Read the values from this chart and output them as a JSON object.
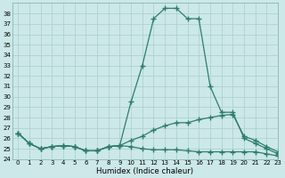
{
  "title": "",
  "xlabel": "Humidex (Indice chaleur)",
  "x": [
    0,
    1,
    2,
    3,
    4,
    5,
    6,
    7,
    8,
    9,
    10,
    11,
    12,
    13,
    14,
    15,
    16,
    17,
    18,
    19,
    20,
    21,
    22,
    23
  ],
  "line1": [
    26.5,
    25.5,
    25.0,
    25.2,
    25.3,
    25.2,
    24.8,
    24.8,
    25.2,
    25.3,
    29.5,
    33.0,
    37.5,
    38.5,
    38.5,
    37.5,
    37.5,
    31.0,
    28.5,
    28.5,
    26.0,
    25.5,
    25.0,
    24.5
  ],
  "line2": [
    26.5,
    25.5,
    25.0,
    25.2,
    25.3,
    25.2,
    24.8,
    24.8,
    25.2,
    25.3,
    25.8,
    26.2,
    26.8,
    27.2,
    27.5,
    27.5,
    27.8,
    28.0,
    28.2,
    28.3,
    26.2,
    25.8,
    25.2,
    24.7
  ],
  "line3": [
    26.5,
    25.5,
    25.0,
    25.2,
    25.3,
    25.2,
    24.8,
    24.8,
    25.2,
    25.3,
    25.2,
    25.0,
    24.9,
    24.9,
    24.9,
    24.8,
    24.7,
    24.7,
    24.7,
    24.7,
    24.7,
    24.7,
    24.5,
    24.3
  ],
  "line_color": "#2e7d6e",
  "bg_color": "#cce8e8",
  "grid_color": "#aacece",
  "ylim": [
    24,
    39
  ],
  "xlim": [
    -0.5,
    23
  ],
  "yticks": [
    24,
    25,
    26,
    27,
    28,
    29,
    30,
    31,
    32,
    33,
    34,
    35,
    36,
    37,
    38
  ],
  "xticks": [
    0,
    1,
    2,
    3,
    4,
    5,
    6,
    7,
    8,
    9,
    10,
    11,
    12,
    13,
    14,
    15,
    16,
    17,
    18,
    19,
    20,
    21,
    22,
    23
  ],
  "marker": "+",
  "markersize": 4,
  "linewidth": 0.9,
  "tick_fontsize": 5.0,
  "xlabel_fontsize": 6.2
}
